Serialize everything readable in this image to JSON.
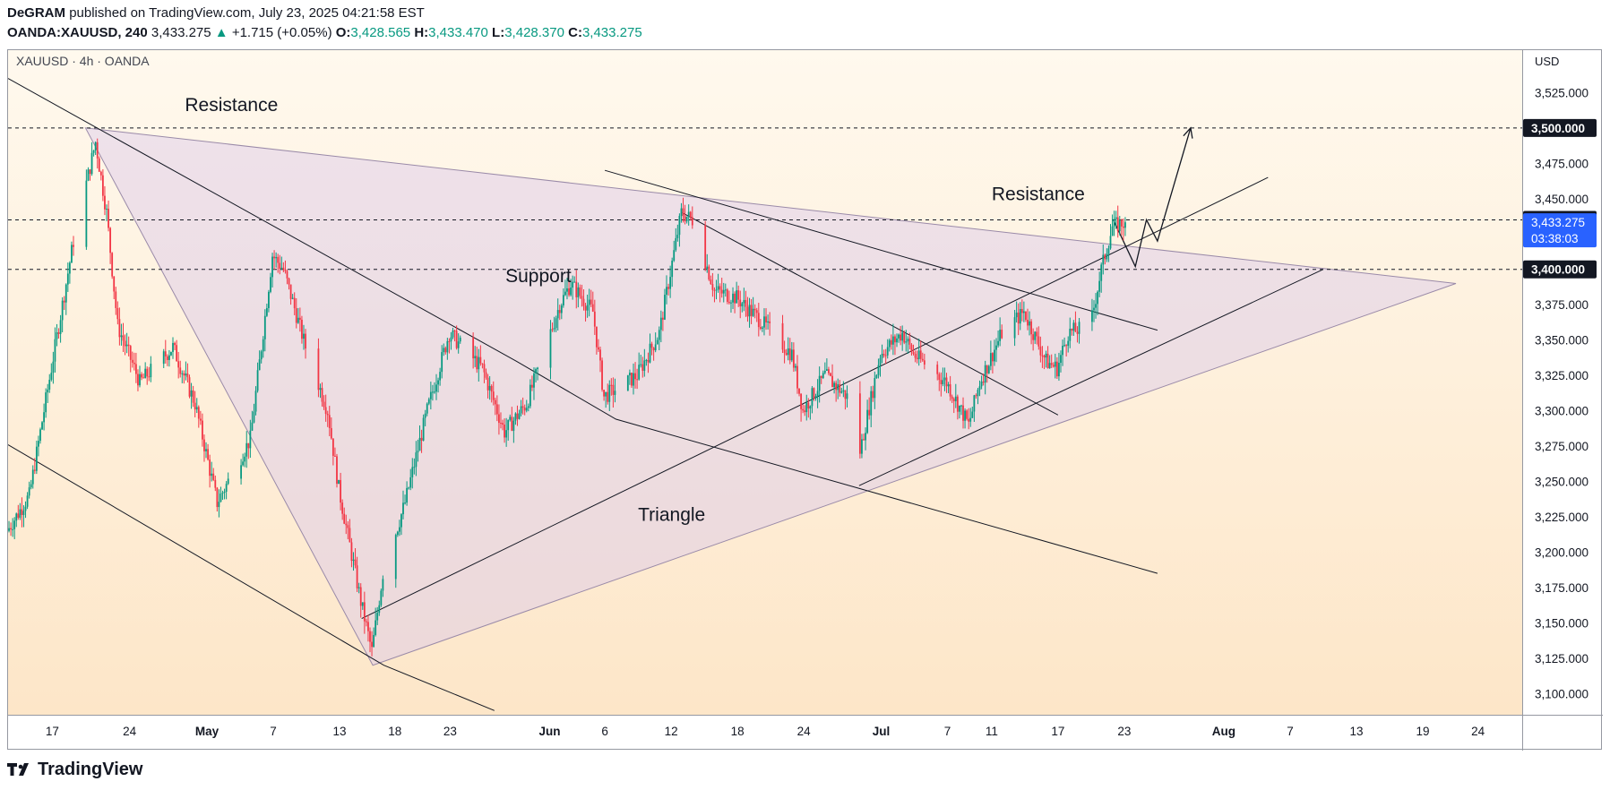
{
  "header": {
    "author": "DeGRAM",
    "published": "published on TradingView.com, July 23, 2025 04:21:58 EST",
    "symbol": "OANDA:XAUUSD, 240",
    "last": "3,433.275",
    "change": "+1.715 (+0.05%)",
    "o_label": "O:",
    "o": "3,428.565",
    "h_label": "H:",
    "h": "3,433.470",
    "l_label": "L:",
    "l": "3,428.370",
    "c_label": "C:",
    "c": "3,433.275"
  },
  "footer": {
    "brand": "TradingView",
    "logo_icon": "tradingview-logo-icon"
  },
  "chart_data": {
    "type": "candlestick",
    "title": "XAUUSD · 4h · OANDA",
    "currency": "USD",
    "ylim": [
      3085,
      3555
    ],
    "y_ticks": [
      3100,
      3125,
      3150,
      3175,
      3200,
      3225,
      3250,
      3275,
      3300,
      3325,
      3350,
      3375,
      3400,
      3425,
      3450,
      3475,
      3500,
      3525
    ],
    "y_tick_labels": [
      "3,100.000",
      "3,125.000",
      "3,150.000",
      "3,175.000",
      "3,200.000",
      "3,225.000",
      "3,250.000",
      "3,275.000",
      "3,300.000",
      "3,325.000",
      "3,350.000",
      "3,375.000",
      "3,400.000",
      "3,425.000",
      "3,450.000",
      "3,475.000",
      "3,500.000",
      "3,525.000"
    ],
    "x_range": [
      "2025-04-13",
      "2025-08-28"
    ],
    "x_ticks": [
      {
        "date": "2025-04-17",
        "label": "17",
        "bold": false
      },
      {
        "date": "2025-04-24",
        "label": "24",
        "bold": false
      },
      {
        "date": "2025-05-01",
        "label": "May",
        "bold": true
      },
      {
        "date": "2025-05-07",
        "label": "7",
        "bold": false
      },
      {
        "date": "2025-05-13",
        "label": "13",
        "bold": false
      },
      {
        "date": "2025-05-18",
        "label": "18",
        "bold": false
      },
      {
        "date": "2025-05-23",
        "label": "23",
        "bold": false
      },
      {
        "date": "2025-06-01",
        "label": "Jun",
        "bold": true
      },
      {
        "date": "2025-06-06",
        "label": "6",
        "bold": false
      },
      {
        "date": "2025-06-12",
        "label": "12",
        "bold": false
      },
      {
        "date": "2025-06-18",
        "label": "18",
        "bold": false
      },
      {
        "date": "2025-06-24",
        "label": "24",
        "bold": false
      },
      {
        "date": "2025-07-01",
        "label": "Jul",
        "bold": true
      },
      {
        "date": "2025-07-07",
        "label": "7",
        "bold": false
      },
      {
        "date": "2025-07-11",
        "label": "11",
        "bold": false
      },
      {
        "date": "2025-07-17",
        "label": "17",
        "bold": false
      },
      {
        "date": "2025-07-23",
        "label": "23",
        "bold": false
      },
      {
        "date": "2025-08-01",
        "label": "Aug",
        "bold": true
      },
      {
        "date": "2025-08-07",
        "label": "7",
        "bold": false
      },
      {
        "date": "2025-08-13",
        "label": "13",
        "bold": false
      },
      {
        "date": "2025-08-19",
        "label": "19",
        "bold": false
      },
      {
        "date": "2025-08-24",
        "label": "24",
        "bold": false
      }
    ],
    "price_path": [
      [
        "2025-04-13",
        3215
      ],
      [
        "2025-04-15",
        3240
      ],
      [
        "2025-04-17",
        3330
      ],
      [
        "2025-04-19",
        3420
      ],
      [
        "2025-04-21",
        3490
      ],
      [
        "2025-04-22",
        3440
      ],
      [
        "2025-04-23",
        3360
      ],
      [
        "2025-04-25",
        3320
      ],
      [
        "2025-04-28",
        3345
      ],
      [
        "2025-04-30",
        3305
      ],
      [
        "2025-05-02",
        3235
      ],
      [
        "2025-05-05",
        3280
      ],
      [
        "2025-05-07",
        3410
      ],
      [
        "2025-05-08",
        3400
      ],
      [
        "2025-05-10",
        3345
      ],
      [
        "2025-05-12",
        3300
      ],
      [
        "2025-05-13",
        3245
      ],
      [
        "2025-05-15",
        3165
      ],
      [
        "2025-05-16",
        3130
      ],
      [
        "2025-05-17",
        3185
      ],
      [
        "2025-05-19",
        3235
      ],
      [
        "2025-05-21",
        3300
      ],
      [
        "2025-05-23",
        3355
      ],
      [
        "2025-05-26",
        3330
      ],
      [
        "2025-05-28",
        3285
      ],
      [
        "2025-05-30",
        3305
      ],
      [
        "2025-06-02",
        3375
      ],
      [
        "2025-06-03",
        3390
      ],
      [
        "2025-06-05",
        3370
      ],
      [
        "2025-06-06",
        3310
      ],
      [
        "2025-06-07",
        3315
      ],
      [
        "2025-06-09",
        3325
      ],
      [
        "2025-06-11",
        3355
      ],
      [
        "2025-06-13",
        3440
      ],
      [
        "2025-06-14",
        3435
      ],
      [
        "2025-06-16",
        3385
      ],
      [
        "2025-06-18",
        3380
      ],
      [
        "2025-06-20",
        3365
      ],
      [
        "2025-06-23",
        3340
      ],
      [
        "2025-06-24",
        3300
      ],
      [
        "2025-06-26",
        3325
      ],
      [
        "2025-06-28",
        3310
      ],
      [
        "2025-06-29",
        3265
      ],
      [
        "2025-07-01",
        3340
      ],
      [
        "2025-07-03",
        3355
      ],
      [
        "2025-07-04",
        3340
      ],
      [
        "2025-07-07",
        3320
      ],
      [
        "2025-07-09",
        3290
      ],
      [
        "2025-07-10",
        3320
      ],
      [
        "2025-07-12",
        3355
      ],
      [
        "2025-07-14",
        3370
      ],
      [
        "2025-07-16",
        3335
      ],
      [
        "2025-07-17",
        3330
      ],
      [
        "2025-07-18",
        3355
      ],
      [
        "2025-07-20",
        3360
      ],
      [
        "2025-07-21",
        3400
      ],
      [
        "2025-07-22",
        3430
      ],
      [
        "2025-07-23",
        3433
      ]
    ],
    "current_price": 3433.275,
    "current_price_label": "3,433.275",
    "countdown": "03:38:03",
    "levels": [
      {
        "value": 3500,
        "label": "3,500.000"
      },
      {
        "value": 3435,
        "label": "3,435.000"
      },
      {
        "value": 3400,
        "label": "3,400.000"
      }
    ],
    "annotations": [
      {
        "text": "Resistance",
        "date": "2025-04-29",
        "price": 3512
      },
      {
        "text": "Resistance",
        "date": "2025-07-11",
        "price": 3449
      },
      {
        "text": "Support",
        "date": "2025-05-28",
        "price": 3391
      },
      {
        "text": "Triangle",
        "date": "2025-06-09",
        "price": 3222
      }
    ],
    "triangle": [
      [
        "2025-04-20",
        3500
      ],
      [
        "2025-05-16",
        3120
      ],
      [
        "2025-08-22",
        3390
      ]
    ],
    "trendlines": [
      [
        [
          "2025-04-13",
          3535
        ],
        [
          "2025-05-29",
          3335
        ],
        [
          "2025-06-07",
          3294
        ],
        [
          "2025-07-26",
          3185
        ]
      ],
      [
        [
          "2025-04-13",
          3276
        ],
        [
          "2025-05-17",
          3120
        ],
        [
          "2025-05-27",
          3088
        ]
      ],
      [
        [
          "2025-06-06",
          3470
        ],
        [
          "2025-07-26",
          3357
        ]
      ],
      [
        [
          "2025-05-15",
          3153
        ],
        [
          "2025-08-05",
          3465
        ]
      ],
      [
        [
          "2025-06-29",
          3247
        ],
        [
          "2025-08-10",
          3400
        ]
      ],
      [
        [
          "2025-06-13",
          3440
        ],
        [
          "2025-07-17",
          3297
        ]
      ]
    ],
    "projection": [
      [
        "2025-07-22",
        3435
      ],
      [
        "2025-07-24",
        3402
      ],
      [
        "2025-07-25",
        3435
      ],
      [
        "2025-07-26",
        3420
      ],
      [
        "2025-07-29",
        3500
      ]
    ],
    "colors": {
      "up": "#089981",
      "down": "#f23645",
      "annotation_fill": "#d9c8ea",
      "bg_top": "#fff9ee",
      "bg_bottom": "#fde6c8"
    }
  }
}
